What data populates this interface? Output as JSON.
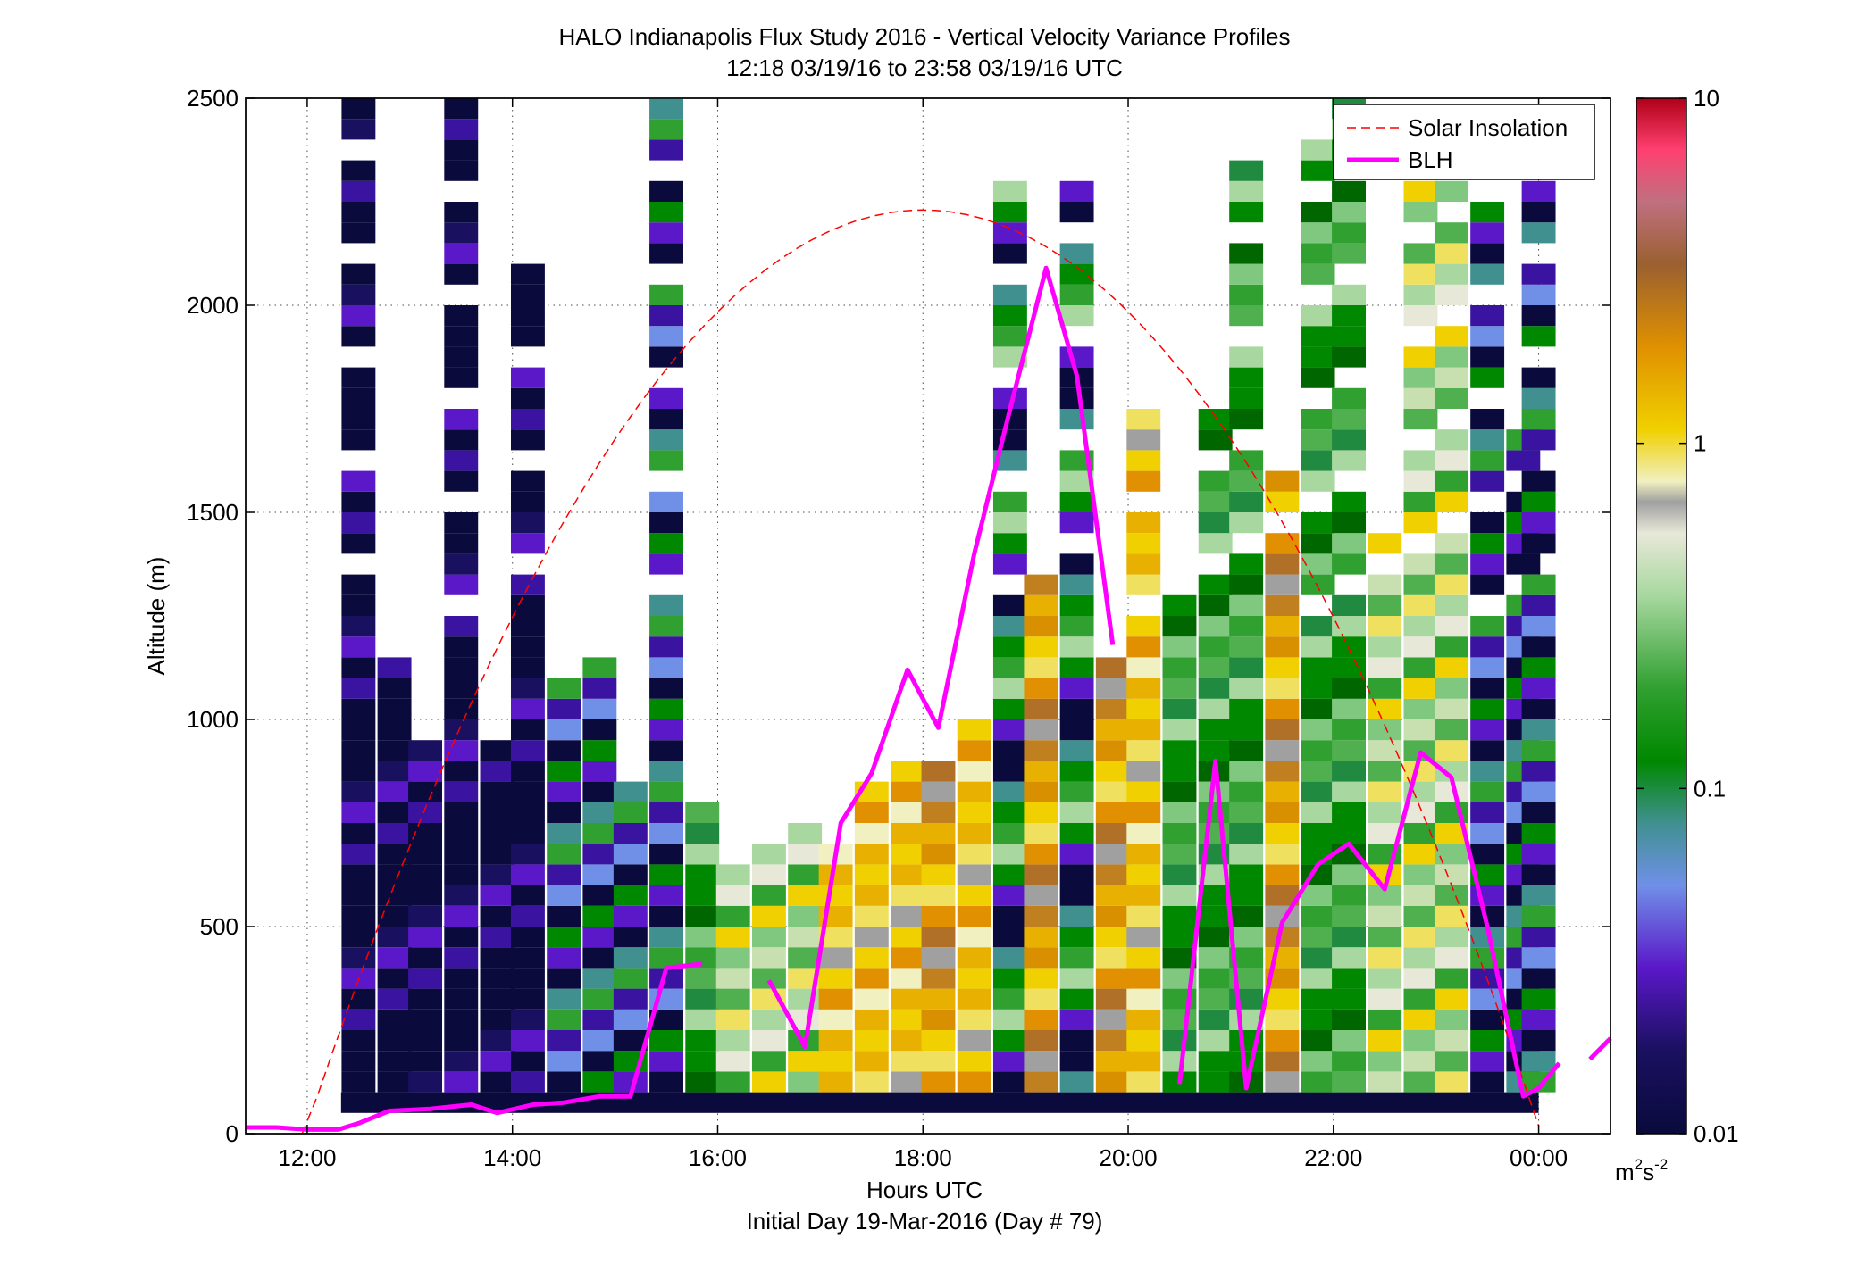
{
  "chart_data": {
    "type": "heatmap",
    "title_line1": "HALO Indianapolis Flux Study 2016 - Vertical Velocity Variance Profiles",
    "title_line2": "12:18 03/19/16 to 23:58 03/19/16  UTC",
    "xlabel": "Hours UTC",
    "xlabel_sub": "Initial Day 19-Mar-2016 (Day # 79)",
    "ylabel": "Altitude (m)",
    "x_range_hours": [
      11.4,
      24.7
    ],
    "ylim": [
      0,
      2500
    ],
    "x_ticks": [
      {
        "value": 12,
        "label": "12:00"
      },
      {
        "value": 14,
        "label": "14:00"
      },
      {
        "value": 16,
        "label": "16:00"
      },
      {
        "value": 18,
        "label": "18:00"
      },
      {
        "value": 20,
        "label": "20:00"
      },
      {
        "value": 22,
        "label": "22:00"
      },
      {
        "value": 24,
        "label": "00:00"
      }
    ],
    "y_ticks": [
      0,
      500,
      1000,
      1500,
      2000,
      2500
    ],
    "grid": true,
    "colorbar": {
      "scale": "log",
      "min": 0.01,
      "max": 10,
      "ticks": [
        "10",
        "1",
        "0.1",
        "0.01"
      ],
      "unit_base": "m",
      "unit_sup1": "2",
      "unit_mid": "s",
      "unit_sup2": "-2"
    },
    "legend": {
      "placement": "top-right",
      "entries": [
        {
          "label": "Solar Insolation",
          "color": "#ff0000",
          "style": "dashed"
        },
        {
          "label": "BLH",
          "color": "#ff00ff",
          "style": "solid"
        }
      ]
    },
    "colors": {
      "blh": "#ff00ff",
      "solar": "#ff0000"
    },
    "heatmap_columns": [
      {
        "x": 12.5,
        "y0": 100,
        "y1": 2500,
        "profile": "dark-cool"
      },
      {
        "x": 12.85,
        "y0": 100,
        "y1": 1150,
        "profile": "dark-cool"
      },
      {
        "x": 13.15,
        "y0": 100,
        "y1": 950,
        "profile": "dark-cool"
      },
      {
        "x": 13.5,
        "y0": 100,
        "y1": 2500,
        "profile": "dark-cool"
      },
      {
        "x": 13.85,
        "y0": 100,
        "y1": 950,
        "profile": "dark-cool"
      },
      {
        "x": 14.15,
        "y0": 100,
        "y1": 2100,
        "profile": "dark-cool"
      },
      {
        "x": 14.5,
        "y0": 100,
        "y1": 1100,
        "profile": "cool-green"
      },
      {
        "x": 14.85,
        "y0": 100,
        "y1": 1150,
        "profile": "cool-green"
      },
      {
        "x": 15.15,
        "y0": 100,
        "y1": 850,
        "profile": "cool-green"
      },
      {
        "x": 15.5,
        "y0": 100,
        "y1": 2500,
        "profile": "cool-green"
      },
      {
        "x": 15.85,
        "y0": 100,
        "y1": 800,
        "profile": "green"
      },
      {
        "x": 16.15,
        "y0": 100,
        "y1": 650,
        "profile": "green-yellow"
      },
      {
        "x": 16.5,
        "y0": 100,
        "y1": 700,
        "profile": "green-yellow"
      },
      {
        "x": 16.85,
        "y0": 100,
        "y1": 750,
        "profile": "green-yellow"
      },
      {
        "x": 17.15,
        "y0": 100,
        "y1": 700,
        "profile": "yellow"
      },
      {
        "x": 17.5,
        "y0": 100,
        "y1": 850,
        "profile": "yellow"
      },
      {
        "x": 17.85,
        "y0": 100,
        "y1": 900,
        "profile": "yellow"
      },
      {
        "x": 18.15,
        "y0": 100,
        "y1": 900,
        "profile": "yellow-orange"
      },
      {
        "x": 18.5,
        "y0": 100,
        "y1": 1000,
        "profile": "yellow"
      },
      {
        "x": 18.85,
        "y0": 100,
        "y1": 2300,
        "profile": "mixed-high"
      },
      {
        "x": 19.15,
        "y0": 100,
        "y1": 1350,
        "profile": "yellow-orange"
      },
      {
        "x": 19.5,
        "y0": 100,
        "y1": 2300,
        "profile": "mixed-high"
      },
      {
        "x": 19.85,
        "y0": 100,
        "y1": 1150,
        "profile": "yellow-orange"
      },
      {
        "x": 20.15,
        "y0": 100,
        "y1": 1750,
        "profile": "yellow"
      },
      {
        "x": 20.5,
        "y0": 100,
        "y1": 1350,
        "profile": "green"
      },
      {
        "x": 20.85,
        "y0": 100,
        "y1": 1750,
        "profile": "green"
      },
      {
        "x": 21.15,
        "y0": 100,
        "y1": 2350,
        "profile": "green"
      },
      {
        "x": 21.5,
        "y0": 100,
        "y1": 1600,
        "profile": "yellow-orange"
      },
      {
        "x": 21.85,
        "y0": 100,
        "y1": 2400,
        "profile": "green"
      },
      {
        "x": 22.15,
        "y0": 100,
        "y1": 2500,
        "profile": "green"
      },
      {
        "x": 22.5,
        "y0": 100,
        "y1": 1450,
        "profile": "green-yellow"
      },
      {
        "x": 22.85,
        "y0": 100,
        "y1": 2300,
        "profile": "green-yellow"
      },
      {
        "x": 23.15,
        "y0": 100,
        "y1": 2300,
        "profile": "green-yellow"
      },
      {
        "x": 23.5,
        "y0": 100,
        "y1": 2300,
        "profile": "cool-green"
      },
      {
        "x": 23.85,
        "y0": 100,
        "y1": 1700,
        "profile": "cool-green"
      },
      {
        "x": 24.0,
        "y0": 100,
        "y1": 2300,
        "profile": "cool-green"
      }
    ],
    "blh_series": [
      {
        "name": "BLH",
        "points": [
          [
            11.4,
            15
          ],
          [
            11.7,
            15
          ],
          [
            12.0,
            10
          ],
          [
            12.3,
            10
          ],
          [
            12.5,
            25
          ],
          [
            12.8,
            55
          ],
          [
            13.2,
            60
          ],
          [
            13.6,
            70
          ],
          [
            13.85,
            50
          ],
          [
            14.2,
            70
          ],
          [
            14.5,
            75
          ],
          [
            14.85,
            90
          ],
          [
            15.15,
            90
          ],
          [
            15.5,
            400
          ],
          [
            15.85,
            410
          ]
        ]
      },
      {
        "name": "BLH",
        "points": [
          [
            16.5,
            370
          ],
          [
            16.85,
            210
          ],
          [
            17.2,
            750
          ],
          [
            17.5,
            870
          ],
          [
            17.85,
            1120
          ],
          [
            18.15,
            980
          ],
          [
            18.5,
            1400
          ],
          [
            18.85,
            1750
          ],
          [
            19.2,
            2090
          ],
          [
            19.5,
            1830
          ],
          [
            19.85,
            1180
          ]
        ]
      },
      {
        "name": "BLH",
        "points": [
          [
            20.5,
            120
          ],
          [
            20.85,
            900
          ],
          [
            21.15,
            110
          ],
          [
            21.5,
            510
          ],
          [
            21.85,
            650
          ],
          [
            22.15,
            700
          ],
          [
            22.5,
            590
          ],
          [
            22.85,
            920
          ],
          [
            23.15,
            860
          ],
          [
            23.5,
            500
          ],
          [
            23.85,
            90
          ],
          [
            24.0,
            110
          ],
          [
            24.2,
            170
          ]
        ]
      },
      {
        "name": "BLH",
        "points": [
          [
            24.5,
            180
          ],
          [
            24.7,
            230
          ]
        ]
      }
    ],
    "solar_curve": {
      "start_hour": 11.95,
      "peak_hour": 18.0,
      "end_hour": 24.0,
      "peak_altitude": 2230
    }
  }
}
